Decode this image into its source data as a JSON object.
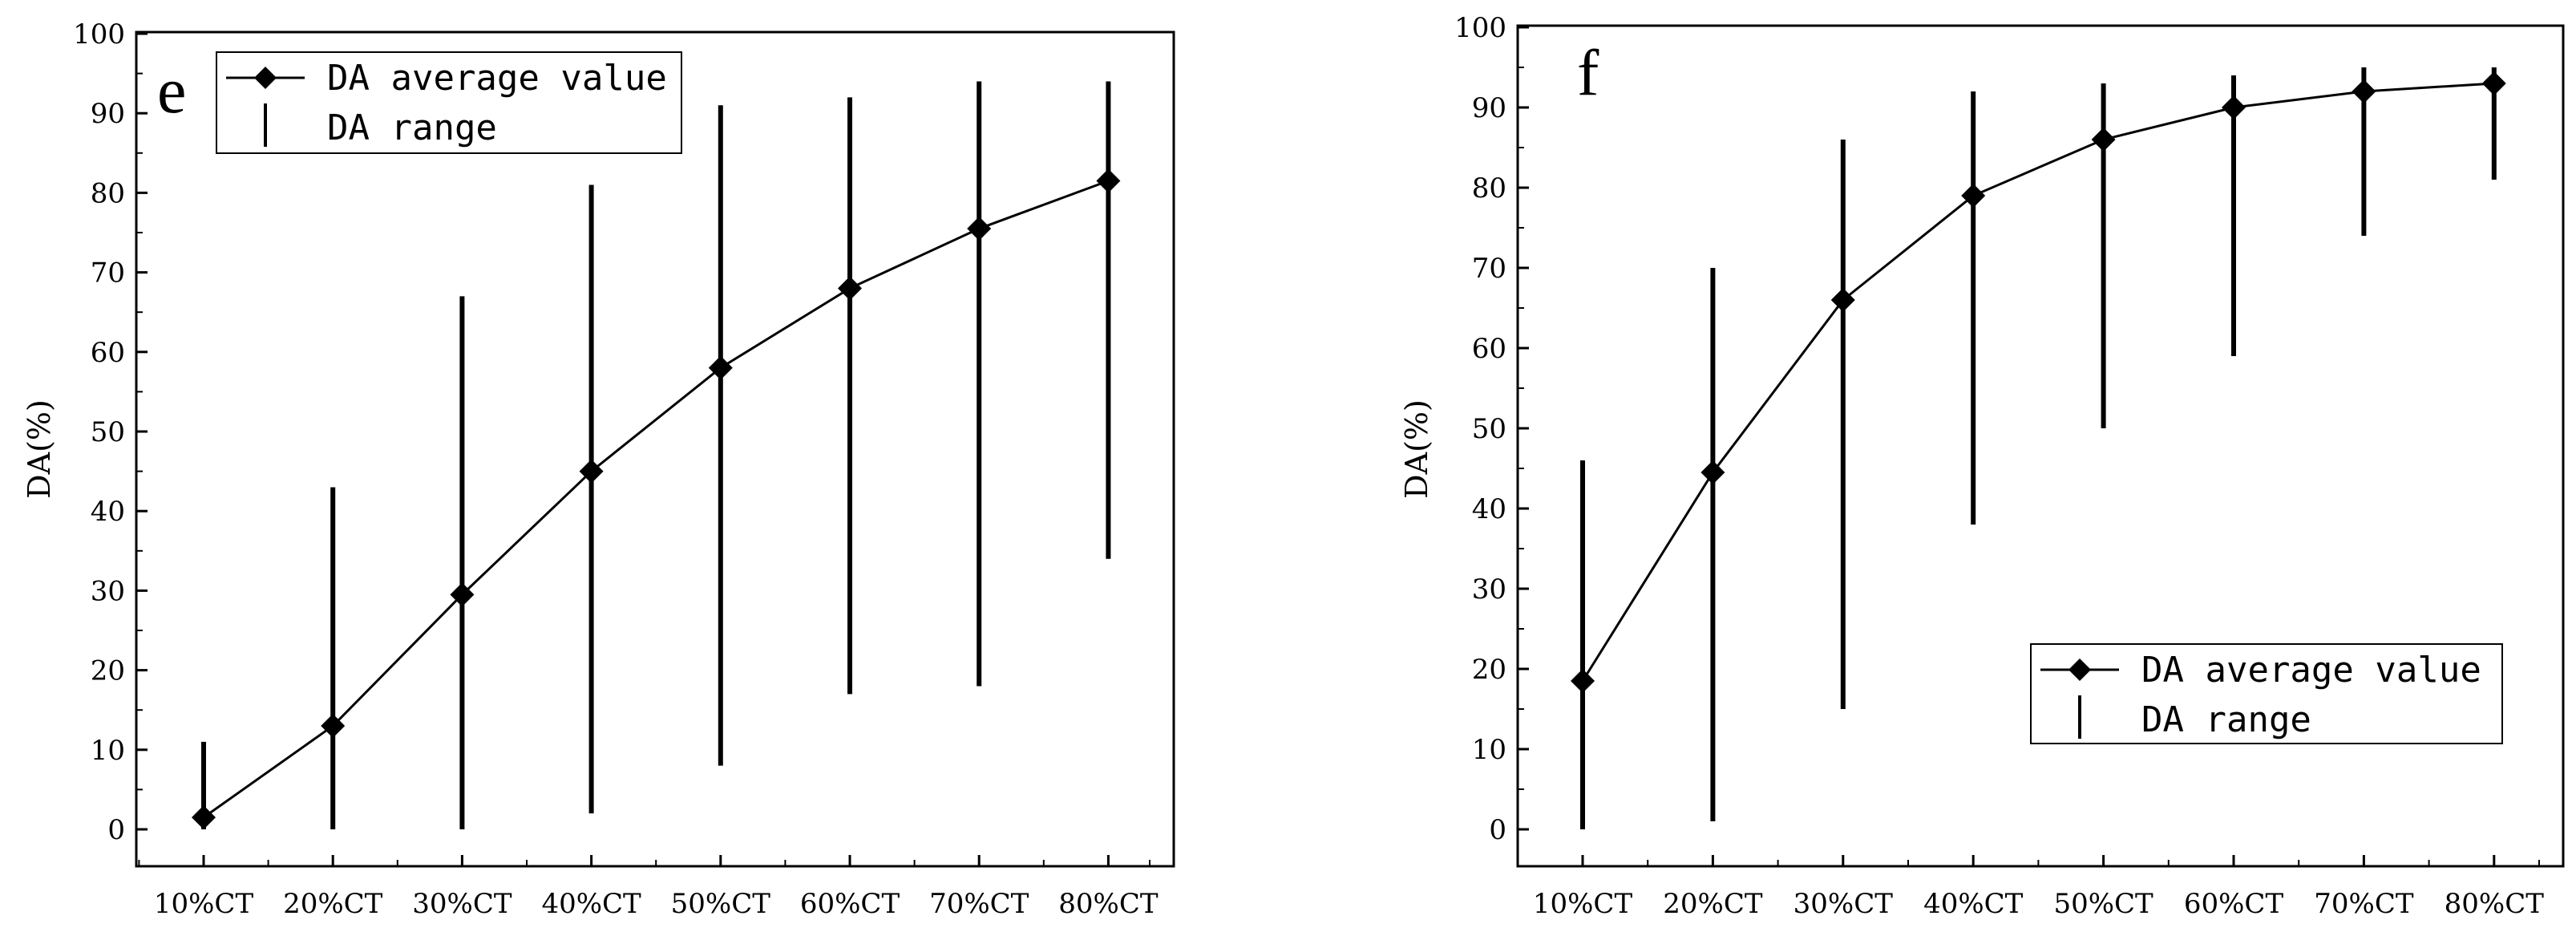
{
  "chart_data": [
    {
      "type": "line",
      "panel_label": "e",
      "title": "",
      "xlabel": "",
      "ylabel": "DA(%)",
      "categories": [
        "10%CT",
        "20%CT",
        "30%CT",
        "40%CT",
        "50%CT",
        "60%CT",
        "70%CT",
        "80%CT"
      ],
      "ylim": [
        0,
        100
      ],
      "yticks": [
        0,
        10,
        20,
        30,
        40,
        50,
        60,
        70,
        80,
        90,
        100
      ],
      "grid": false,
      "legend_position": "top-left",
      "series": [
        {
          "name": "DA average value",
          "values": [
            1.5,
            13,
            29.5,
            45,
            58,
            68,
            75.5,
            81.5
          ]
        },
        {
          "name": "DA range",
          "low": [
            0,
            0,
            0,
            2,
            8,
            17,
            18,
            34
          ],
          "high": [
            11,
            43,
            67,
            81,
            91,
            92,
            94,
            94
          ]
        }
      ]
    },
    {
      "type": "line",
      "panel_label": "f",
      "title": "",
      "xlabel": "",
      "ylabel": "DA(%)",
      "categories": [
        "10%CT",
        "20%CT",
        "30%CT",
        "40%CT",
        "50%CT",
        "60%CT",
        "70%CT",
        "80%CT"
      ],
      "ylim": [
        0,
        100
      ],
      "yticks": [
        0,
        10,
        20,
        30,
        40,
        50,
        60,
        70,
        80,
        90,
        100
      ],
      "grid": false,
      "legend_position": "bottom-right",
      "series": [
        {
          "name": "DA average value",
          "values": [
            18.5,
            44.5,
            66,
            79,
            86,
            90,
            92,
            93
          ]
        },
        {
          "name": "DA range",
          "low": [
            0,
            1,
            15,
            38,
            50,
            59,
            74,
            81
          ],
          "high": [
            46,
            70,
            86,
            92,
            93,
            94,
            95,
            95
          ]
        }
      ]
    }
  ]
}
